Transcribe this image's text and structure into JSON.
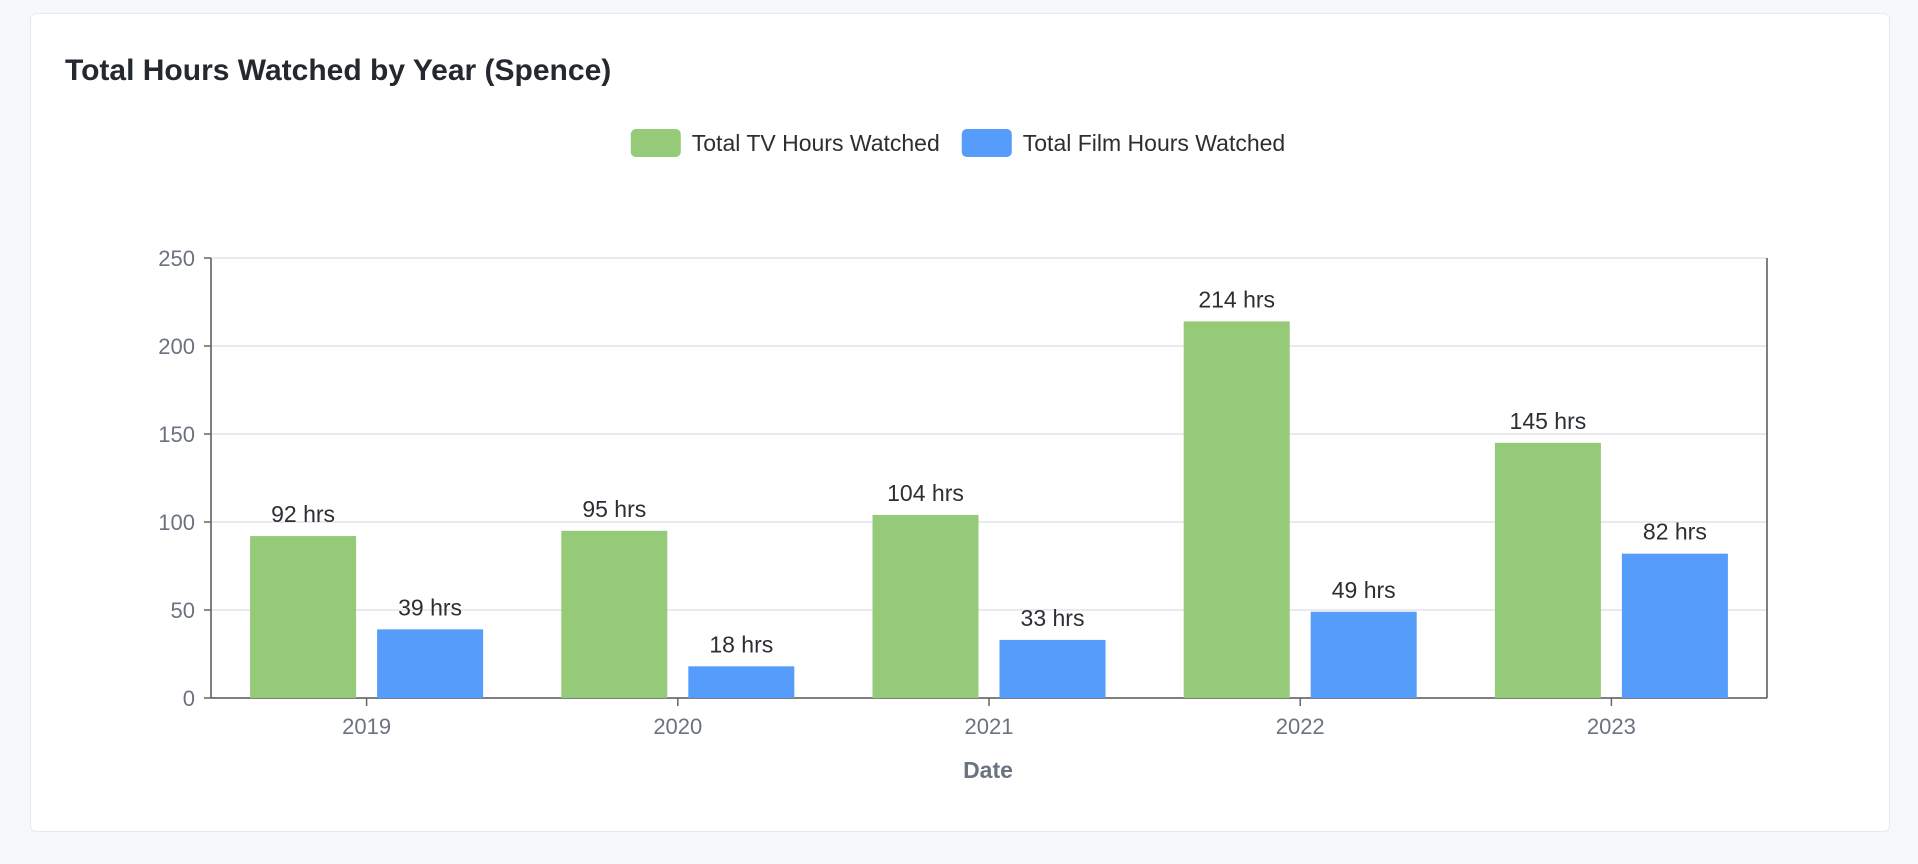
{
  "card": {
    "title": "Total Hours Watched by Year (Spence)"
  },
  "chart_data": {
    "type": "bar",
    "title": "Total Hours Watched by Year (Spence)",
    "xlabel": "Date",
    "ylabel": "",
    "categories": [
      "2019",
      "2020",
      "2021",
      "2022",
      "2023"
    ],
    "ylim": [
      0,
      250
    ],
    "yticks": [
      0,
      50,
      100,
      150,
      200,
      250
    ],
    "grid": true,
    "legend_position": "top-center",
    "value_suffix": " hrs",
    "series": [
      {
        "name": "Total TV Hours Watched",
        "color": "#94ca78",
        "values": [
          92,
          95,
          104,
          214,
          145
        ]
      },
      {
        "name": "Total Film Hours Watched",
        "color": "#569cfa",
        "values": [
          39,
          18,
          33,
          49,
          82
        ]
      }
    ]
  }
}
